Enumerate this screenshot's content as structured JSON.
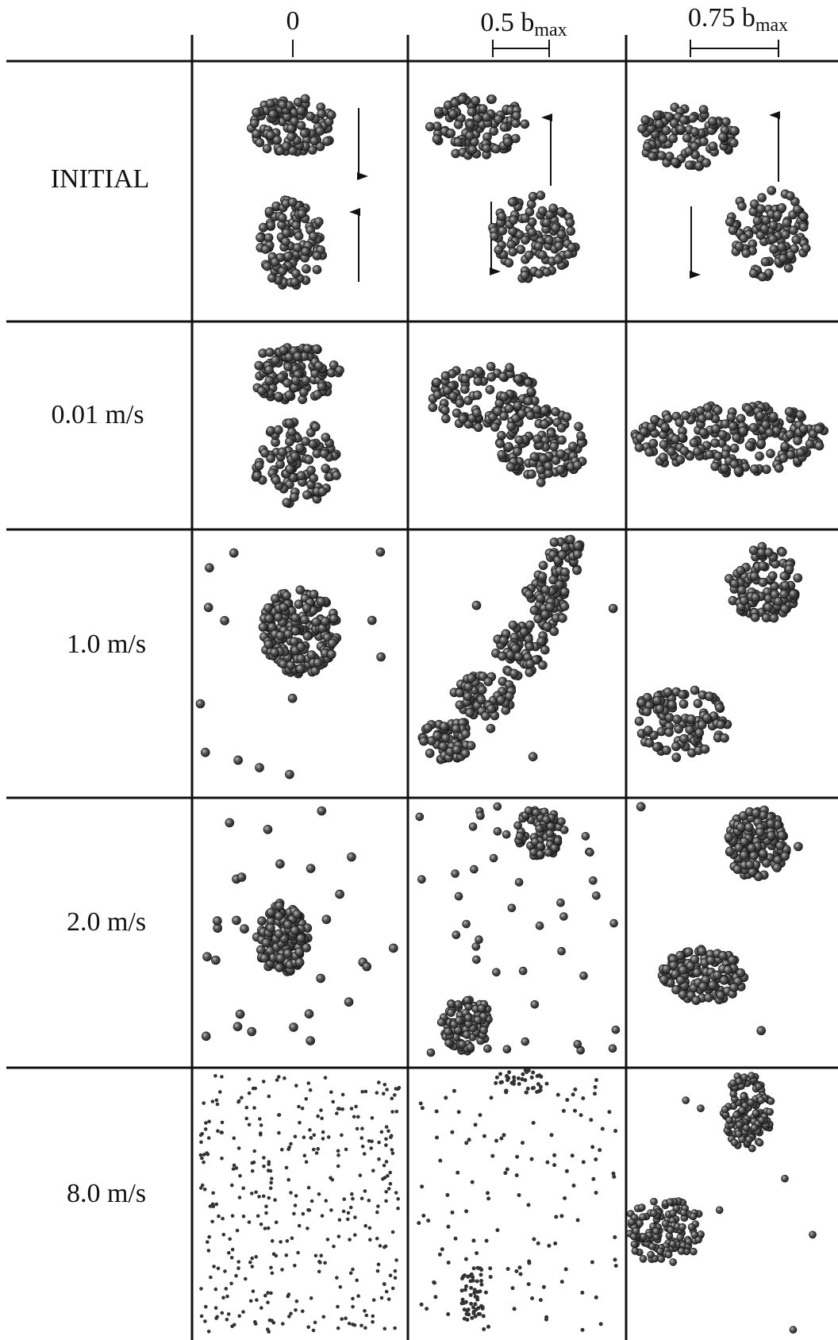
{
  "columns": [
    {
      "label": "0"
    },
    {
      "label": "0.5 b",
      "subscript": "max"
    },
    {
      "label": "0.75 b",
      "subscript": "max"
    }
  ],
  "rows": [
    "INITIAL",
    "0.01 m/s",
    "1.0 m/s",
    "2.0 m/s",
    "8.0 m/s"
  ]
}
